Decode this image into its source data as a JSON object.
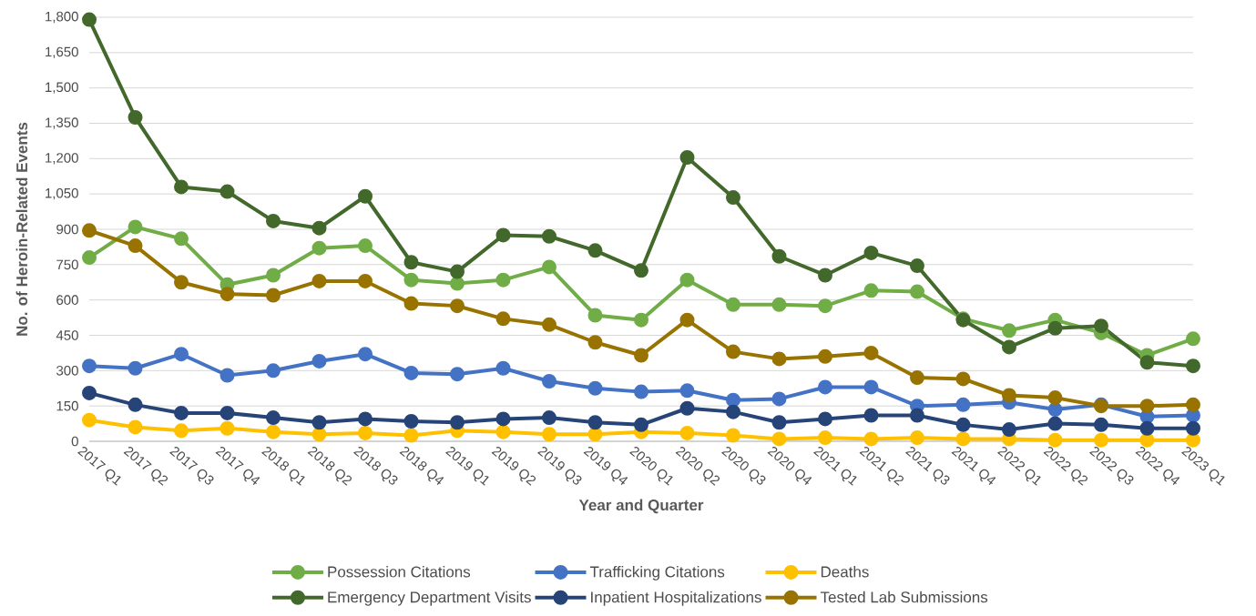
{
  "chart_data": {
    "type": "line",
    "xlabel": "Year and Quarter",
    "ylabel": "No. of Heroin-Related Events",
    "categories": [
      "2017 Q1",
      "2017 Q2",
      "2017 Q3",
      "2017 Q4",
      "2018 Q1",
      "2018 Q2",
      "2018 Q3",
      "2018 Q4",
      "2019 Q1",
      "2019 Q2",
      "2019 Q3",
      "2019 Q4",
      "2020 Q1",
      "2020 Q2",
      "2020 Q3",
      "2020 Q4",
      "2021 Q1",
      "2021 Q2",
      "2021 Q3",
      "2021 Q4",
      "2022 Q1",
      "2022 Q2",
      "2022 Q3",
      "2022 Q4",
      "2023 Q1"
    ],
    "series": [
      {
        "name": "Possession Citations",
        "color": "#70ad47",
        "values": [
          780,
          910,
          860,
          665,
          705,
          820,
          830,
          685,
          670,
          685,
          740,
          535,
          515,
          685,
          580,
          580,
          575,
          640,
          635,
          520,
          470,
          515,
          460,
          365,
          435
        ]
      },
      {
        "name": "Trafficking Citations",
        "color": "#4472c4",
        "values": [
          320,
          310,
          370,
          280,
          300,
          340,
          370,
          290,
          285,
          310,
          255,
          225,
          210,
          215,
          175,
          180,
          230,
          230,
          150,
          155,
          165,
          135,
          155,
          105,
          110
        ]
      },
      {
        "name": "Deaths",
        "color": "#ffc000",
        "values": [
          90,
          60,
          45,
          55,
          40,
          30,
          35,
          25,
          45,
          40,
          30,
          30,
          40,
          35,
          25,
          10,
          15,
          10,
          15,
          10,
          10,
          5,
          5,
          5,
          5
        ]
      },
      {
        "name": "Emergency Department Visits",
        "color": "#43682b",
        "values": [
          1790,
          1375,
          1080,
          1060,
          935,
          905,
          1040,
          760,
          720,
          875,
          870,
          810,
          725,
          1205,
          1035,
          785,
          705,
          800,
          745,
          515,
          400,
          480,
          490,
          335,
          320
        ]
      },
      {
        "name": "Inpatient Hospitalizations",
        "color": "#264478",
        "values": [
          205,
          155,
          120,
          120,
          100,
          80,
          95,
          85,
          80,
          95,
          100,
          80,
          70,
          140,
          125,
          80,
          95,
          110,
          110,
          70,
          50,
          75,
          70,
          55,
          55
        ]
      },
      {
        "name": "Tested Lab Submissions",
        "color": "#997300",
        "values": [
          895,
          830,
          675,
          625,
          620,
          680,
          680,
          585,
          575,
          520,
          495,
          420,
          365,
          515,
          380,
          350,
          360,
          375,
          270,
          265,
          195,
          185,
          150,
          150,
          155
        ]
      }
    ],
    "ylim": [
      0,
      1800
    ],
    "yticks": [
      0,
      150,
      300,
      450,
      600,
      750,
      900,
      {
        "value": 1050,
        "label": "1,050"
      },
      {
        "value": 1200,
        "label": "1,200"
      },
      {
        "value": 1350,
        "label": "1,350"
      },
      {
        "value": 1500,
        "label": "1,500"
      },
      {
        "value": 1650,
        "label": "1,650"
      },
      {
        "value": 1800,
        "label": "1,800"
      }
    ],
    "grid": "y",
    "legend": "bottom",
    "marker": "circle",
    "line_style": "solid"
  }
}
